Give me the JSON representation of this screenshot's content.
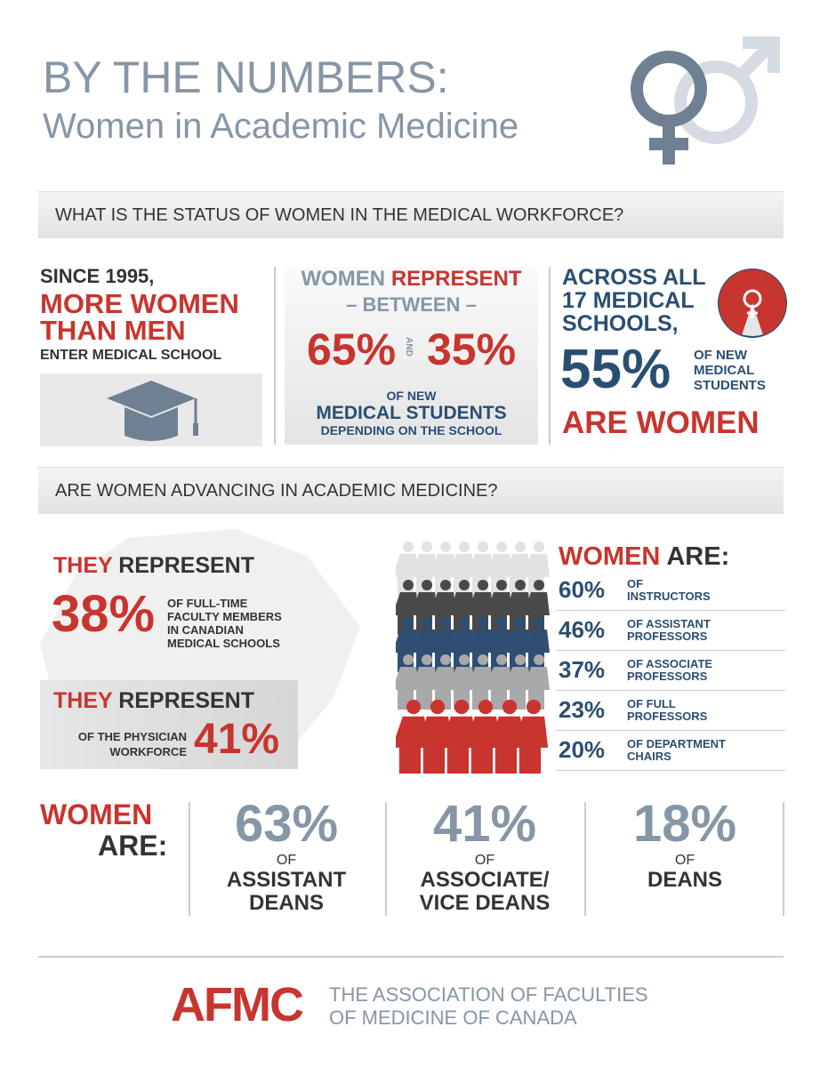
{
  "header": {
    "title": "BY THE NUMBERS:",
    "subtitle": "Women in Academic Medicine"
  },
  "workforce": {
    "heading": "WHAT IS THE STATUS OF WOMEN IN THE MEDICAL WORKFORCE?",
    "since": {
      "line1": "SINCE 1995,",
      "line2": "MORE WOMEN",
      "line3": "THAN MEN",
      "line4": "ENTER MEDICAL SCHOOL"
    },
    "range": {
      "women": "WOMEN",
      "represent": "REPRESENT",
      "between": "– BETWEEN –",
      "high": "65%",
      "and": "AND",
      "low": "35%",
      "of_new": "OF NEW",
      "students": "MEDICAL STUDENTS",
      "depending": "DEPENDING ON THE SCHOOL"
    },
    "across": {
      "line1": "ACROSS ALL",
      "line2": "17 MEDICAL",
      "line3": "SCHOOLS,",
      "value": "55%",
      "label1": "OF NEW",
      "label2": "MEDICAL",
      "label3": "STUDENTS",
      "line4": "ARE WOMEN"
    }
  },
  "advancing": {
    "heading": "ARE WOMEN ADVANCING IN ACADEMIC MEDICINE?",
    "faculty": {
      "they": "THEY",
      "represent": "REPRESENT",
      "value": "38%",
      "label": [
        "OF FULL-TIME",
        "FACULTY MEMBERS",
        "IN CANADIAN",
        "MEDICAL SCHOOLS"
      ]
    },
    "physician": {
      "they": "THEY",
      "represent": "REPRESENT",
      "label": [
        "OF THE PHYSICIAN",
        "WORKFORCE"
      ],
      "value": "41%"
    },
    "ranks": {
      "women": "WOMEN",
      "are": "ARE:",
      "rows": [
        {
          "value": "60%",
          "label": [
            "OF",
            "INSTRUCTORS"
          ]
        },
        {
          "value": "46%",
          "label": [
            "OF ASSISTANT",
            "PROFESSORS"
          ]
        },
        {
          "value": "37%",
          "label": [
            "OF ASSOCIATE",
            "PROFESSORS"
          ]
        },
        {
          "value": "23%",
          "label": [
            "OF FULL",
            "PROFESSORS"
          ]
        },
        {
          "value": "20%",
          "label": [
            "OF DEPARTMENT",
            "CHAIRS"
          ]
        }
      ]
    }
  },
  "deans": {
    "women": "WOMEN",
    "are": "ARE:",
    "items": [
      {
        "value": "63%",
        "of": "OF",
        "label": [
          "ASSISTANT",
          "DEANS"
        ]
      },
      {
        "value": "41%",
        "of": "OF",
        "label": [
          "ASSOCIATE/",
          "VICE DEANS"
        ]
      },
      {
        "value": "18%",
        "of": "OF",
        "label": [
          "DEANS"
        ]
      }
    ]
  },
  "footer": {
    "logo": "AFMC",
    "org1": "THE ASSOCIATION OF FACULTIES",
    "org2": "OF MEDICINE OF CANADA"
  }
}
